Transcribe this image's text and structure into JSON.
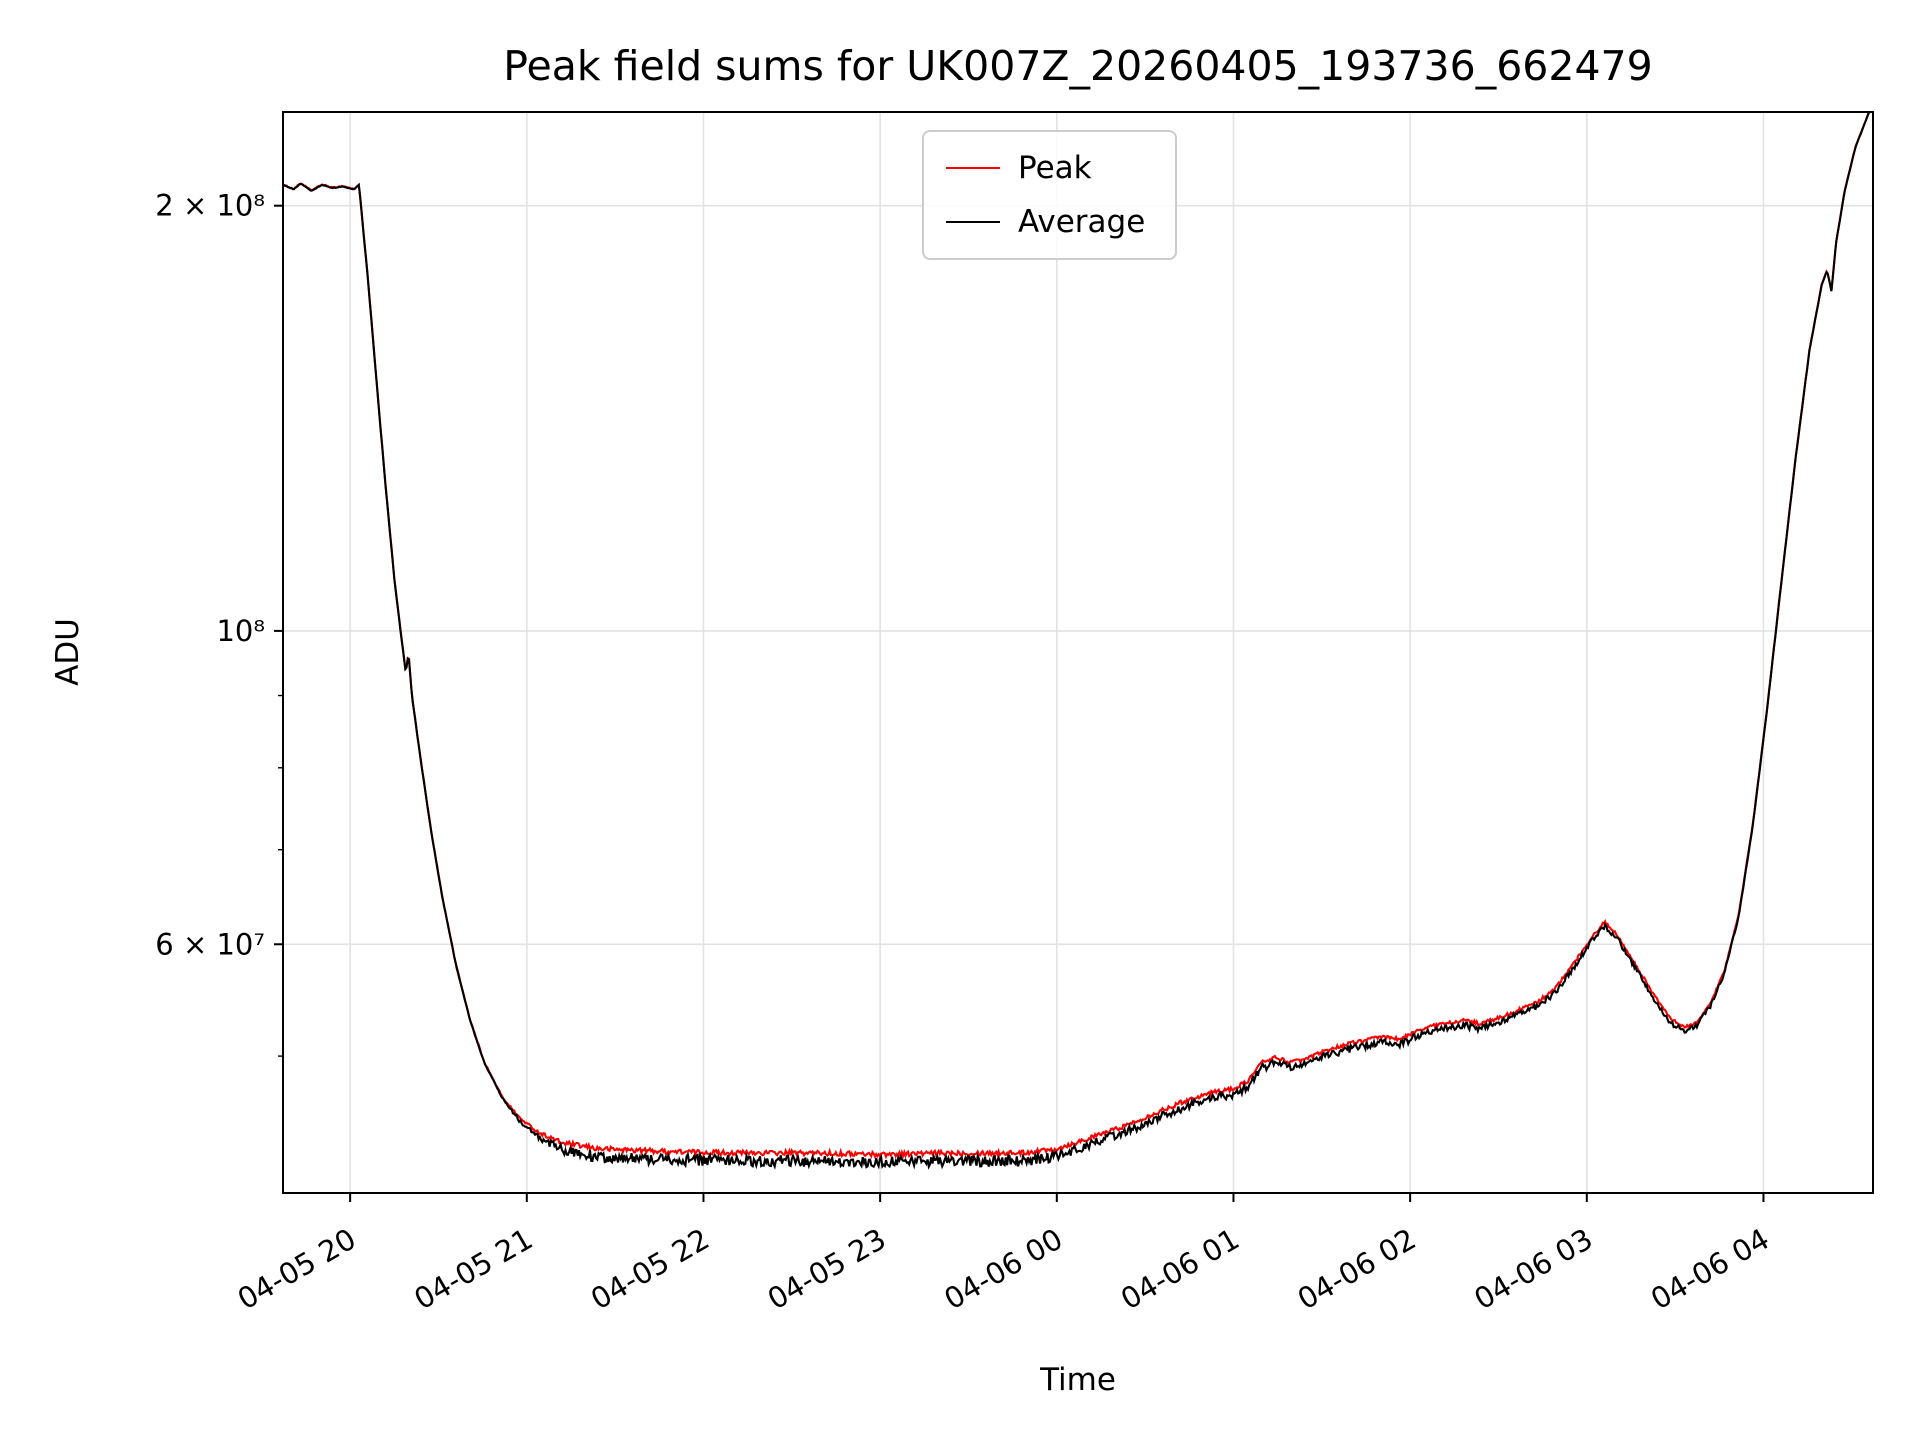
{
  "chart_data": {
    "type": "line",
    "title": "Peak field sums for UK007Z_20260405_193736_662479",
    "xlabel": "Time",
    "ylabel": "ADU",
    "yscale": "log",
    "x_unit": "hours since 04-05 19:00",
    "xlim": [
      0.62,
      9.62
    ],
    "ylim": [
      40000000.0,
      233000000.0
    ],
    "grid": true,
    "legend_position": "upper center",
    "xticks": [
      {
        "t": 1,
        "label": "04-05 20"
      },
      {
        "t": 2,
        "label": "04-05 21"
      },
      {
        "t": 3,
        "label": "04-05 22"
      },
      {
        "t": 4,
        "label": "04-05 23"
      },
      {
        "t": 5,
        "label": "04-06 00"
      },
      {
        "t": 6,
        "label": "04-06 01"
      },
      {
        "t": 7,
        "label": "04-06 02"
      },
      {
        "t": 8,
        "label": "04-06 03"
      },
      {
        "t": 9,
        "label": "04-06 04"
      }
    ],
    "yticks": [
      {
        "v": 60000000.0,
        "label": "6 × 10⁷"
      },
      {
        "v": 100000000.0,
        "label": "10⁸"
      },
      {
        "v": 200000000.0,
        "label": "2 × 10⁸"
      }
    ],
    "yticks_minor": [
      50000000.0,
      70000000.0,
      80000000.0,
      90000000.0
    ],
    "series": [
      {
        "name": "Peak",
        "color": "#ff0000",
        "noise_bias": "sym",
        "noise_amp": [
          [
            0.62,
            0.0008
          ],
          [
            1.9,
            0.0015
          ],
          [
            2.2,
            0.004
          ],
          [
            4.9,
            0.004
          ],
          [
            5.4,
            0.0035
          ],
          [
            7.0,
            0.003
          ],
          [
            8.3,
            0.0025
          ],
          [
            8.75,
            0.0015
          ],
          [
            9.05,
            0.0008
          ],
          [
            9.62,
            0.0005
          ]
        ],
        "points": [
          [
            0.62,
            207000000.0
          ],
          [
            0.68,
            205500000.0
          ],
          [
            0.72,
            207500000.0
          ],
          [
            0.78,
            205000000.0
          ],
          [
            0.84,
            207000000.0
          ],
          [
            0.9,
            206000000.0
          ],
          [
            0.96,
            206500000.0
          ],
          [
            1.02,
            205500000.0
          ],
          [
            1.05,
            207000000.0
          ],
          [
            1.1,
            178000000.0
          ],
          [
            1.15,
            150000000.0
          ],
          [
            1.2,
            127000000.0
          ],
          [
            1.25,
            109000000.0
          ],
          [
            1.29,
            99000000.0
          ],
          [
            1.315,
            93500000.0
          ],
          [
            1.33,
            96500000.0
          ],
          [
            1.35,
            90000000.0
          ],
          [
            1.4,
            81000000.0
          ],
          [
            1.46,
            72000000.0
          ],
          [
            1.52,
            65000000.0
          ],
          [
            1.6,
            58000000.0
          ],
          [
            1.68,
            53000000.0
          ],
          [
            1.76,
            49500000.0
          ],
          [
            1.86,
            46800000.0
          ],
          [
            1.96,
            45200000.0
          ],
          [
            2.06,
            44200000.0
          ],
          [
            2.2,
            43400000.0
          ],
          [
            2.4,
            43000000.0
          ],
          [
            2.8,
            42800000.0
          ],
          [
            3.2,
            42700000.0
          ],
          [
            3.6,
            42700000.0
          ],
          [
            4.0,
            42600000.0
          ],
          [
            4.4,
            42700000.0
          ],
          [
            4.8,
            42700000.0
          ],
          [
            5.0,
            43000000.0
          ],
          [
            5.2,
            43800000.0
          ],
          [
            5.4,
            44700000.0
          ],
          [
            5.6,
            45800000.0
          ],
          [
            5.75,
            46600000.0
          ],
          [
            5.9,
            47200000.0
          ],
          [
            6.0,
            47400000.0
          ],
          [
            6.08,
            48000000.0
          ],
          [
            6.16,
            49500000.0
          ],
          [
            6.24,
            49900000.0
          ],
          [
            6.32,
            49500000.0
          ],
          [
            6.4,
            49700000.0
          ],
          [
            6.55,
            50600000.0
          ],
          [
            6.7,
            51200000.0
          ],
          [
            6.85,
            51600000.0
          ],
          [
            6.95,
            51400000.0
          ],
          [
            7.05,
            52200000.0
          ],
          [
            7.15,
            52600000.0
          ],
          [
            7.3,
            53000000.0
          ],
          [
            7.4,
            52700000.0
          ],
          [
            7.5,
            53200000.0
          ],
          [
            7.6,
            53800000.0
          ],
          [
            7.72,
            54600000.0
          ],
          [
            7.82,
            55800000.0
          ],
          [
            7.92,
            58000000.0
          ],
          [
            8.02,
            60500000.0
          ],
          [
            8.1,
            62200000.0
          ],
          [
            8.17,
            61000000.0
          ],
          [
            8.27,
            58200000.0
          ],
          [
            8.37,
            55500000.0
          ],
          [
            8.47,
            53200000.0
          ],
          [
            8.55,
            52400000.0
          ],
          [
            8.62,
            52800000.0
          ],
          [
            8.7,
            54500000.0
          ],
          [
            8.78,
            57500000.0
          ],
          [
            8.86,
            63000000.0
          ],
          [
            8.94,
            73000000.0
          ],
          [
            9.02,
            88000000.0
          ],
          [
            9.1,
            108000000.0
          ],
          [
            9.18,
            132000000.0
          ],
          [
            9.26,
            158000000.0
          ],
          [
            9.33,
            176000000.0
          ],
          [
            9.36,
            180000000.0
          ],
          [
            9.385,
            174000000.0
          ],
          [
            9.41,
            188000000.0
          ],
          [
            9.46,
            205000000.0
          ],
          [
            9.52,
            220000000.0
          ],
          [
            9.58,
            230000000.0
          ],
          [
            9.62,
            237000000.0
          ]
        ]
      },
      {
        "name": "Average",
        "color": "#000000",
        "noise_bias": "down",
        "noise_amp": [
          [
            0.62,
            0.0006
          ],
          [
            1.85,
            0.0012
          ],
          [
            2.1,
            0.009
          ],
          [
            2.35,
            0.013
          ],
          [
            4.9,
            0.013
          ],
          [
            5.2,
            0.01
          ],
          [
            6.0,
            0.009
          ],
          [
            6.9,
            0.0085
          ],
          [
            7.7,
            0.007
          ],
          [
            8.1,
            0.006
          ],
          [
            8.5,
            0.0065
          ],
          [
            8.8,
            0.0035
          ],
          [
            9.0,
            0.0012
          ],
          [
            9.35,
            0.0006
          ],
          [
            9.62,
            0.0005
          ]
        ],
        "points": [
          [
            0.62,
            207000000.0
          ],
          [
            0.68,
            205500000.0
          ],
          [
            0.72,
            207500000.0
          ],
          [
            0.78,
            205000000.0
          ],
          [
            0.84,
            207000000.0
          ],
          [
            0.9,
            206000000.0
          ],
          [
            0.96,
            206500000.0
          ],
          [
            1.02,
            205500000.0
          ],
          [
            1.05,
            207000000.0
          ],
          [
            1.1,
            178000000.0
          ],
          [
            1.15,
            150000000.0
          ],
          [
            1.2,
            127000000.0
          ],
          [
            1.25,
            109000000.0
          ],
          [
            1.29,
            99000000.0
          ],
          [
            1.315,
            93500000.0
          ],
          [
            1.33,
            96500000.0
          ],
          [
            1.35,
            90000000.0
          ],
          [
            1.4,
            81000000.0
          ],
          [
            1.46,
            72000000.0
          ],
          [
            1.52,
            65000000.0
          ],
          [
            1.6,
            58000000.0
          ],
          [
            1.68,
            53000000.0
          ],
          [
            1.76,
            49500000.0
          ],
          [
            1.86,
            46800000.0
          ],
          [
            1.96,
            45200000.0
          ],
          [
            2.06,
            44200000.0
          ],
          [
            2.2,
            43400000.0
          ],
          [
            2.4,
            43000000.0
          ],
          [
            2.8,
            42800000.0
          ],
          [
            3.2,
            42700000.0
          ],
          [
            3.6,
            42700000.0
          ],
          [
            4.0,
            42600000.0
          ],
          [
            4.4,
            42700000.0
          ],
          [
            4.8,
            42700000.0
          ],
          [
            5.0,
            43000000.0
          ],
          [
            5.2,
            43800000.0
          ],
          [
            5.4,
            44700000.0
          ],
          [
            5.6,
            45800000.0
          ],
          [
            5.75,
            46600000.0
          ],
          [
            5.9,
            47200000.0
          ],
          [
            6.0,
            47400000.0
          ],
          [
            6.08,
            48000000.0
          ],
          [
            6.16,
            49500000.0
          ],
          [
            6.24,
            49900000.0
          ],
          [
            6.32,
            49500000.0
          ],
          [
            6.4,
            49700000.0
          ],
          [
            6.55,
            50600000.0
          ],
          [
            6.7,
            51200000.0
          ],
          [
            6.85,
            51600000.0
          ],
          [
            6.95,
            51400000.0
          ],
          [
            7.05,
            52200000.0
          ],
          [
            7.15,
            52600000.0
          ],
          [
            7.3,
            53000000.0
          ],
          [
            7.4,
            52700000.0
          ],
          [
            7.5,
            53200000.0
          ],
          [
            7.6,
            53800000.0
          ],
          [
            7.72,
            54600000.0
          ],
          [
            7.82,
            55800000.0
          ],
          [
            7.92,
            58000000.0
          ],
          [
            8.02,
            60500000.0
          ],
          [
            8.1,
            62200000.0
          ],
          [
            8.17,
            61000000.0
          ],
          [
            8.27,
            58200000.0
          ],
          [
            8.37,
            55500000.0
          ],
          [
            8.47,
            53200000.0
          ],
          [
            8.55,
            52400000.0
          ],
          [
            8.62,
            52800000.0
          ],
          [
            8.7,
            54500000.0
          ],
          [
            8.78,
            57500000.0
          ],
          [
            8.86,
            63000000.0
          ],
          [
            8.94,
            73000000.0
          ],
          [
            9.02,
            88000000.0
          ],
          [
            9.1,
            108000000.0
          ],
          [
            9.18,
            132000000.0
          ],
          [
            9.26,
            158000000.0
          ],
          [
            9.33,
            176000000.0
          ],
          [
            9.36,
            180000000.0
          ],
          [
            9.385,
            174000000.0
          ],
          [
            9.41,
            188000000.0
          ],
          [
            9.46,
            205000000.0
          ],
          [
            9.52,
            220000000.0
          ],
          [
            9.58,
            230000000.0
          ],
          [
            9.62,
            237000000.0
          ]
        ]
      }
    ]
  }
}
